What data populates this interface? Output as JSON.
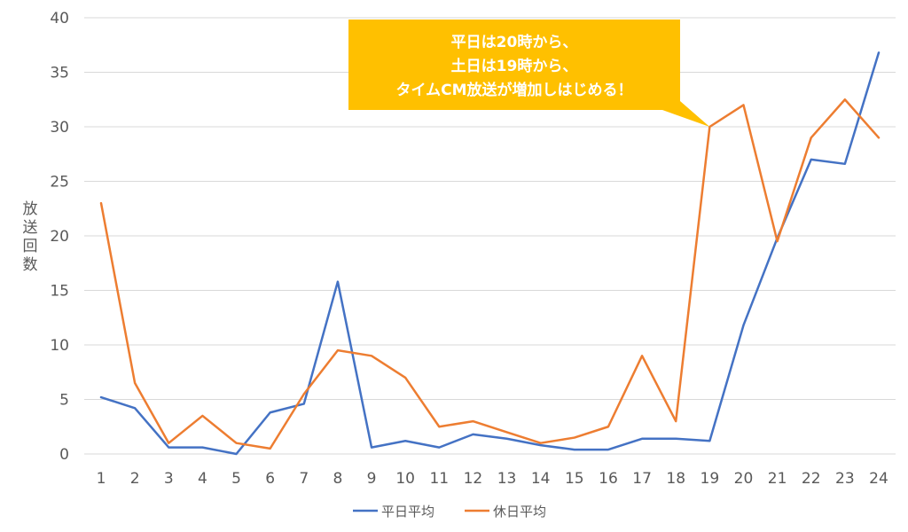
{
  "chart_data": {
    "type": "line",
    "title": "",
    "xlabel": "",
    "ylabel": "放送回数",
    "x": [
      1,
      2,
      3,
      4,
      5,
      6,
      7,
      8,
      9,
      10,
      11,
      12,
      13,
      14,
      15,
      16,
      17,
      18,
      19,
      20,
      21,
      22,
      23,
      24
    ],
    "ylim": [
      0,
      40
    ],
    "yticks": [
      0,
      5,
      10,
      15,
      20,
      25,
      30,
      35,
      40
    ],
    "grid": true,
    "legend_position": "bottom",
    "series": [
      {
        "name": "平日平均",
        "color": "#4472c4",
        "values": [
          5.2,
          4.2,
          0.6,
          0.6,
          0.0,
          3.8,
          4.6,
          15.8,
          0.6,
          1.2,
          0.6,
          1.8,
          1.4,
          0.8,
          0.4,
          0.4,
          1.4,
          1.4,
          1.2,
          11.8,
          19.8,
          27.0,
          26.6,
          36.8
        ]
      },
      {
        "name": "休日平均",
        "color": "#ed7d31",
        "values": [
          23.0,
          6.5,
          1.0,
          3.5,
          1.0,
          0.5,
          5.5,
          9.5,
          9.0,
          7.0,
          2.5,
          3.0,
          2.0,
          1.0,
          1.5,
          2.5,
          9.0,
          3.0,
          30.0,
          32.0,
          19.5,
          29.0,
          32.5,
          29.0
        ]
      }
    ],
    "annotation": {
      "lines": [
        "平日は20時から、",
        "土日は19時から、",
        "タイムCM放送が増加しはじめる！"
      ],
      "points_to_x": 19,
      "points_to_y": 30,
      "color": "#ffc000"
    }
  }
}
